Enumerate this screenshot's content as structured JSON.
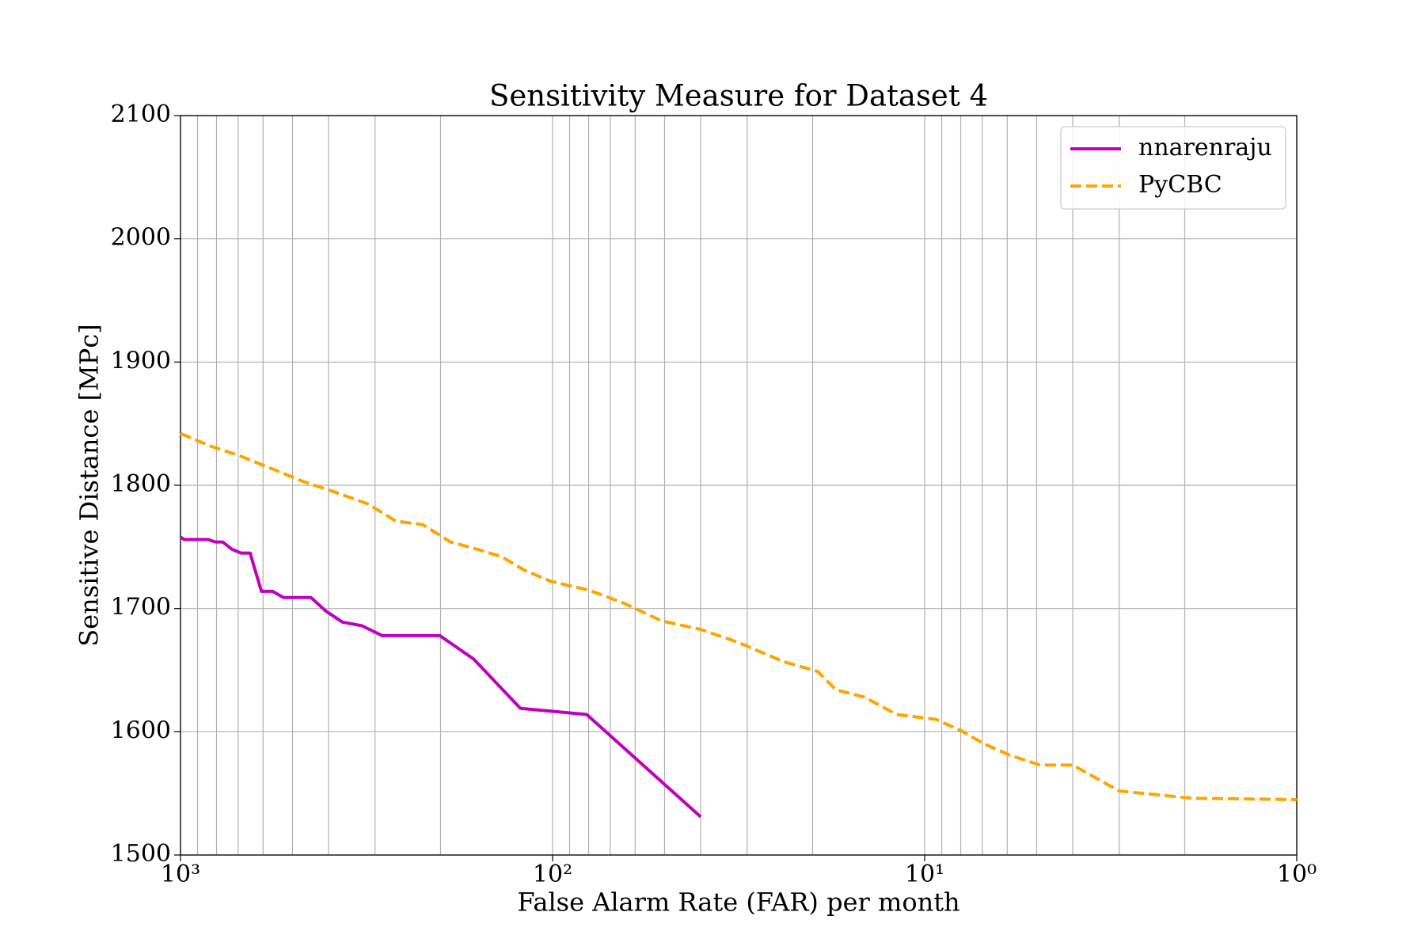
{
  "chart_data": {
    "type": "line",
    "title": "Sensitivity Measure for Dataset 4",
    "xlabel": "False Alarm Rate (FAR) per month",
    "ylabel": "Sensitive Distance [MPc]",
    "xscale": "log",
    "xlim": [
      1000,
      1
    ],
    "ylim": [
      1500,
      2100
    ],
    "xticks": [
      {
        "value": 1000,
        "label": "10³"
      },
      {
        "value": 100,
        "label": "10²"
      },
      {
        "value": 10,
        "label": "10¹"
      },
      {
        "value": 1,
        "label": "10⁰"
      }
    ],
    "xminorticks": [
      900,
      800,
      700,
      600,
      500,
      400,
      300,
      200,
      90,
      80,
      70,
      60,
      50,
      40,
      30,
      20,
      9,
      8,
      7,
      6,
      5,
      4,
      3,
      2
    ],
    "yticks": [
      1500,
      1600,
      1700,
      1800,
      1900,
      2000,
      2100
    ],
    "grid": true,
    "legend": "upper right",
    "series": [
      {
        "name": "nnarenraju",
        "color": "#bf00bf",
        "style": "solid",
        "x": [
          1000,
          977,
          843,
          806,
          770,
          727,
          687,
          650,
          606,
          566,
          529,
          446,
          407,
          367,
          325,
          287,
          201,
          163,
          122,
          81,
          40
        ],
        "values": [
          1758,
          1756,
          1756,
          1754,
          1754,
          1748,
          1745,
          1745,
          1714,
          1714,
          1709,
          1709,
          1698,
          1689,
          1686,
          1678,
          1678,
          1659,
          1619,
          1614,
          1531
        ]
      },
      {
        "name": "PyCBC",
        "color": "#ffa500",
        "style": "dashed",
        "x": [
          1000,
          834,
          695,
          553,
          467,
          389,
          314,
          264,
          223,
          188,
          159,
          137,
          119,
          101,
          80,
          64,
          51,
          40,
          32,
          24,
          19.4,
          17.3,
          14.5,
          11.9,
          9.3,
          8.0,
          6.9,
          5.9,
          4.9,
          4.0,
          3.0,
          1.9,
          1.0
        ],
        "values": [
          1842,
          1832,
          1824,
          1812,
          1803,
          1795,
          1785,
          1771,
          1768,
          1754,
          1748,
          1742,
          1731,
          1722,
          1715,
          1704,
          1690,
          1683,
          1673,
          1657,
          1649,
          1634,
          1628,
          1614,
          1610,
          1601,
          1590,
          1581,
          1573,
          1573,
          1552,
          1546,
          1545
        ]
      }
    ]
  }
}
